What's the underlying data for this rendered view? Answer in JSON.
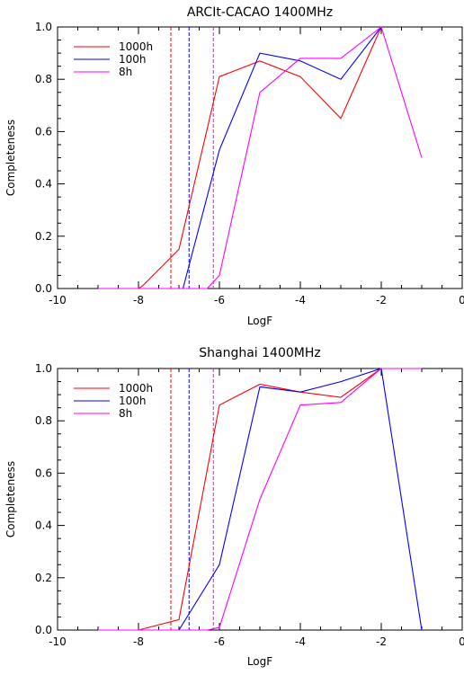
{
  "chart_data": [
    {
      "type": "line",
      "title": "ARCIt-CACAO 1400MHz",
      "xlabel": "LogF",
      "ylabel": "Completeness",
      "xlim": [
        -10,
        0
      ],
      "ylim": [
        0,
        1
      ],
      "xticks": [
        "-10",
        "-8",
        "-6",
        "-4",
        "-2",
        "0"
      ],
      "yticks": [
        "0.0",
        "0.2",
        "0.4",
        "0.6",
        "0.8",
        "1.0"
      ],
      "legend_position": "top-left",
      "grid": false,
      "series": [
        {
          "name": "1000h",
          "color": "#ff0000",
          "x": [
            -9,
            -8,
            -7.9,
            -7,
            -6,
            -5,
            -4,
            -3,
            -2
          ],
          "y": [
            0,
            0,
            0.01,
            0.15,
            0.81,
            0.87,
            0.81,
            0.65,
            1.0
          ]
        },
        {
          "name": "100h",
          "color": "#0000ff",
          "x": [
            -9,
            -7.2,
            -6.9,
            -6,
            -5,
            -4,
            -3,
            -2
          ],
          "y": [
            0,
            0,
            0,
            0.53,
            0.9,
            0.87,
            0.8,
            1.0
          ]
        },
        {
          "name": "8h",
          "color": "#ff00ff",
          "x": [
            -9,
            -6.3,
            -6,
            -5,
            -4,
            -3,
            -2,
            -1
          ],
          "y": [
            0,
            0,
            0.05,
            0.75,
            0.88,
            0.88,
            1.0,
            0.5
          ]
        }
      ],
      "vlines": [
        {
          "x": -7.2,
          "color": "#ff0000"
        },
        {
          "x": -6.75,
          "color": "#0000ff"
        },
        {
          "x": -6.15,
          "color": "#ff00ff"
        }
      ]
    },
    {
      "type": "line",
      "title": "Shanghai 1400MHz",
      "xlabel": "LogF",
      "ylabel": "Completeness",
      "xlim": [
        -10,
        0
      ],
      "ylim": [
        0,
        1
      ],
      "xticks": [
        "-10",
        "-8",
        "-6",
        "-4",
        "-2",
        "0"
      ],
      "yticks": [
        "0.0",
        "0.2",
        "0.4",
        "0.6",
        "0.8",
        "1.0"
      ],
      "legend_position": "top-left",
      "grid": false,
      "series": [
        {
          "name": "1000h",
          "color": "#ff0000",
          "x": [
            -9,
            -8,
            -7,
            -6,
            -5,
            -4,
            -3,
            -2
          ],
          "y": [
            0,
            0,
            0.04,
            0.86,
            0.94,
            0.91,
            0.89,
            1.0
          ]
        },
        {
          "name": "100h",
          "color": "#0000ff",
          "x": [
            -7.0,
            -6,
            -5,
            -4,
            -3,
            -2,
            -1
          ],
          "y": [
            0,
            0.25,
            0.93,
            0.91,
            0.95,
            1.0,
            0
          ]
        },
        {
          "name": "8h",
          "color": "#ff00ff",
          "x": [
            -9,
            -6.3,
            -6,
            -5,
            -4,
            -3,
            -2,
            -1
          ],
          "y": [
            0,
            0,
            0.01,
            0.5,
            0.86,
            0.87,
            1.0,
            1.0
          ]
        }
      ],
      "vlines": [
        {
          "x": -7.2,
          "color": "#ff0000"
        },
        {
          "x": -6.75,
          "color": "#0000ff"
        },
        {
          "x": -6.15,
          "color": "#ff00ff"
        }
      ]
    }
  ]
}
